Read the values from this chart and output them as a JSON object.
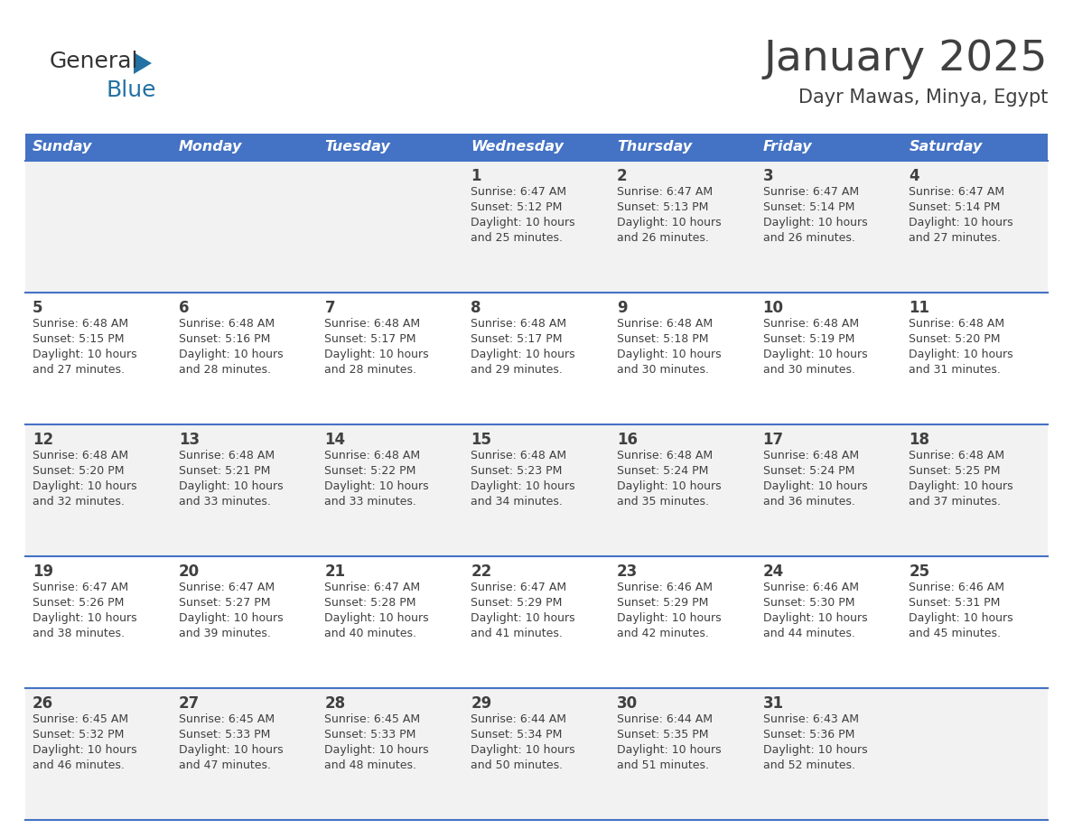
{
  "title": "January 2025",
  "subtitle": "Dayr Mawas, Minya, Egypt",
  "header_bg": "#4472C4",
  "header_text_color": "#FFFFFF",
  "days_of_week": [
    "Sunday",
    "Monday",
    "Tuesday",
    "Wednesday",
    "Thursday",
    "Friday",
    "Saturday"
  ],
  "row_bg_white": "#FFFFFF",
  "row_bg_gray": "#F2F2F2",
  "divider_color": "#4472C4",
  "text_color": "#404040",
  "logo_general_color": "#333333",
  "logo_blue_color": "#2471A3",
  "calendar": [
    [
      {
        "day": "",
        "info": ""
      },
      {
        "day": "",
        "info": ""
      },
      {
        "day": "",
        "info": ""
      },
      {
        "day": "1",
        "info": "Sunrise: 6:47 AM\nSunset: 5:12 PM\nDaylight: 10 hours\nand 25 minutes."
      },
      {
        "day": "2",
        "info": "Sunrise: 6:47 AM\nSunset: 5:13 PM\nDaylight: 10 hours\nand 26 minutes."
      },
      {
        "day": "3",
        "info": "Sunrise: 6:47 AM\nSunset: 5:14 PM\nDaylight: 10 hours\nand 26 minutes."
      },
      {
        "day": "4",
        "info": "Sunrise: 6:47 AM\nSunset: 5:14 PM\nDaylight: 10 hours\nand 27 minutes."
      }
    ],
    [
      {
        "day": "5",
        "info": "Sunrise: 6:48 AM\nSunset: 5:15 PM\nDaylight: 10 hours\nand 27 minutes."
      },
      {
        "day": "6",
        "info": "Sunrise: 6:48 AM\nSunset: 5:16 PM\nDaylight: 10 hours\nand 28 minutes."
      },
      {
        "day": "7",
        "info": "Sunrise: 6:48 AM\nSunset: 5:17 PM\nDaylight: 10 hours\nand 28 minutes."
      },
      {
        "day": "8",
        "info": "Sunrise: 6:48 AM\nSunset: 5:17 PM\nDaylight: 10 hours\nand 29 minutes."
      },
      {
        "day": "9",
        "info": "Sunrise: 6:48 AM\nSunset: 5:18 PM\nDaylight: 10 hours\nand 30 minutes."
      },
      {
        "day": "10",
        "info": "Sunrise: 6:48 AM\nSunset: 5:19 PM\nDaylight: 10 hours\nand 30 minutes."
      },
      {
        "day": "11",
        "info": "Sunrise: 6:48 AM\nSunset: 5:20 PM\nDaylight: 10 hours\nand 31 minutes."
      }
    ],
    [
      {
        "day": "12",
        "info": "Sunrise: 6:48 AM\nSunset: 5:20 PM\nDaylight: 10 hours\nand 32 minutes."
      },
      {
        "day": "13",
        "info": "Sunrise: 6:48 AM\nSunset: 5:21 PM\nDaylight: 10 hours\nand 33 minutes."
      },
      {
        "day": "14",
        "info": "Sunrise: 6:48 AM\nSunset: 5:22 PM\nDaylight: 10 hours\nand 33 minutes."
      },
      {
        "day": "15",
        "info": "Sunrise: 6:48 AM\nSunset: 5:23 PM\nDaylight: 10 hours\nand 34 minutes."
      },
      {
        "day": "16",
        "info": "Sunrise: 6:48 AM\nSunset: 5:24 PM\nDaylight: 10 hours\nand 35 minutes."
      },
      {
        "day": "17",
        "info": "Sunrise: 6:48 AM\nSunset: 5:24 PM\nDaylight: 10 hours\nand 36 minutes."
      },
      {
        "day": "18",
        "info": "Sunrise: 6:48 AM\nSunset: 5:25 PM\nDaylight: 10 hours\nand 37 minutes."
      }
    ],
    [
      {
        "day": "19",
        "info": "Sunrise: 6:47 AM\nSunset: 5:26 PM\nDaylight: 10 hours\nand 38 minutes."
      },
      {
        "day": "20",
        "info": "Sunrise: 6:47 AM\nSunset: 5:27 PM\nDaylight: 10 hours\nand 39 minutes."
      },
      {
        "day": "21",
        "info": "Sunrise: 6:47 AM\nSunset: 5:28 PM\nDaylight: 10 hours\nand 40 minutes."
      },
      {
        "day": "22",
        "info": "Sunrise: 6:47 AM\nSunset: 5:29 PM\nDaylight: 10 hours\nand 41 minutes."
      },
      {
        "day": "23",
        "info": "Sunrise: 6:46 AM\nSunset: 5:29 PM\nDaylight: 10 hours\nand 42 minutes."
      },
      {
        "day": "24",
        "info": "Sunrise: 6:46 AM\nSunset: 5:30 PM\nDaylight: 10 hours\nand 44 minutes."
      },
      {
        "day": "25",
        "info": "Sunrise: 6:46 AM\nSunset: 5:31 PM\nDaylight: 10 hours\nand 45 minutes."
      }
    ],
    [
      {
        "day": "26",
        "info": "Sunrise: 6:45 AM\nSunset: 5:32 PM\nDaylight: 10 hours\nand 46 minutes."
      },
      {
        "day": "27",
        "info": "Sunrise: 6:45 AM\nSunset: 5:33 PM\nDaylight: 10 hours\nand 47 minutes."
      },
      {
        "day": "28",
        "info": "Sunrise: 6:45 AM\nSunset: 5:33 PM\nDaylight: 10 hours\nand 48 minutes."
      },
      {
        "day": "29",
        "info": "Sunrise: 6:44 AM\nSunset: 5:34 PM\nDaylight: 10 hours\nand 50 minutes."
      },
      {
        "day": "30",
        "info": "Sunrise: 6:44 AM\nSunset: 5:35 PM\nDaylight: 10 hours\nand 51 minutes."
      },
      {
        "day": "31",
        "info": "Sunrise: 6:43 AM\nSunset: 5:36 PM\nDaylight: 10 hours\nand 52 minutes."
      },
      {
        "day": "",
        "info": ""
      }
    ]
  ]
}
